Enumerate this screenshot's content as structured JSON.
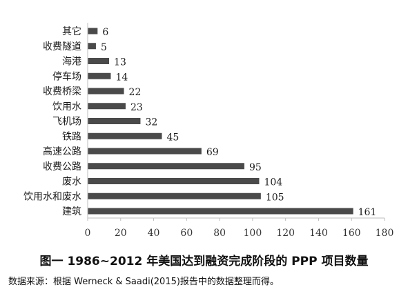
{
  "chart_data": {
    "type": "bar",
    "orientation": "horizontal",
    "categories": [
      "其它",
      "收费隧道",
      "海港",
      "停车场",
      "收费桥梁",
      "饮用水",
      "飞机场",
      "铁路",
      "高速公路",
      "收费公路",
      "废水",
      "饮用水和废水",
      "建筑"
    ],
    "values": [
      6,
      5,
      13,
      14,
      22,
      23,
      32,
      45,
      69,
      95,
      104,
      105,
      161
    ],
    "xticks": [
      "0",
      "20",
      "40",
      "60",
      "80",
      "100",
      "120",
      "140",
      "160",
      "180"
    ],
    "xlim": [
      0,
      180
    ],
    "grid": false,
    "bar_color": "#4a4a4a",
    "axis_color": "#bdbdbd"
  },
  "caption": {
    "title": "图一  1986~2012 年美国达到融资完成阶段的 PPP 项目数量",
    "source": "数据来源：根据 Werneck & Saadi(2015)报告中的数据整理而得。"
  }
}
